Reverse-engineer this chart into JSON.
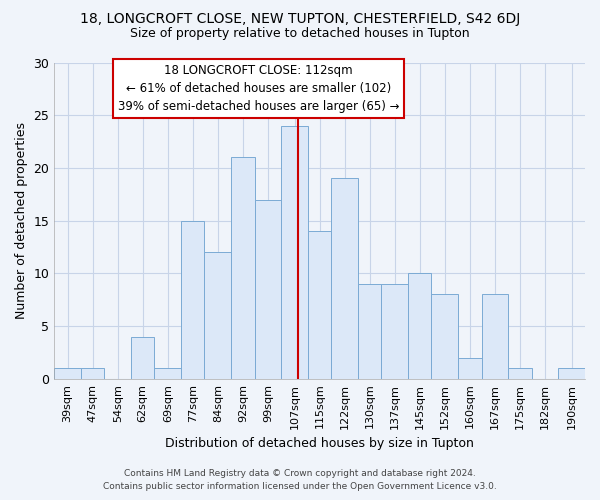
{
  "title": "18, LONGCROFT CLOSE, NEW TUPTON, CHESTERFIELD, S42 6DJ",
  "subtitle": "Size of property relative to detached houses in Tupton",
  "xlabel": "Distribution of detached houses by size in Tupton",
  "ylabel": "Number of detached properties",
  "bar_labels": [
    "39sqm",
    "47sqm",
    "54sqm",
    "62sqm",
    "69sqm",
    "77sqm",
    "84sqm",
    "92sqm",
    "99sqm",
    "107sqm",
    "115sqm",
    "122sqm",
    "130sqm",
    "137sqm",
    "145sqm",
    "152sqm",
    "160sqm",
    "167sqm",
    "175sqm",
    "182sqm",
    "190sqm"
  ],
  "bar_values": [
    1,
    1,
    0,
    4,
    1,
    15,
    12,
    21,
    17,
    24,
    14,
    19,
    9,
    9,
    10,
    8,
    2,
    8,
    1,
    0,
    1
  ],
  "bin_edges": [
    39,
    47,
    54,
    62,
    69,
    77,
    84,
    92,
    99,
    107,
    115,
    122,
    130,
    137,
    145,
    152,
    160,
    167,
    175,
    182,
    190,
    198
  ],
  "bar_color": "#dce8f8",
  "bar_edgecolor": "#7baad4",
  "vline_x": 112,
  "vline_color": "#cc0000",
  "annotation_title": "18 LONGCROFT CLOSE: 112sqm",
  "annotation_line1": "← 61% of detached houses are smaller (102)",
  "annotation_line2": "39% of semi-detached houses are larger (65) →",
  "annotation_box_color": "#ffffff",
  "annotation_box_edgecolor": "#cc0000",
  "ylim": [
    0,
    30
  ],
  "yticks": [
    0,
    5,
    10,
    15,
    20,
    25,
    30
  ],
  "footer1": "Contains HM Land Registry data © Crown copyright and database right 2024.",
  "footer2": "Contains public sector information licensed under the Open Government Licence v3.0.",
  "bg_color": "#f0f4fa",
  "grid_color": "#c8d4e8"
}
